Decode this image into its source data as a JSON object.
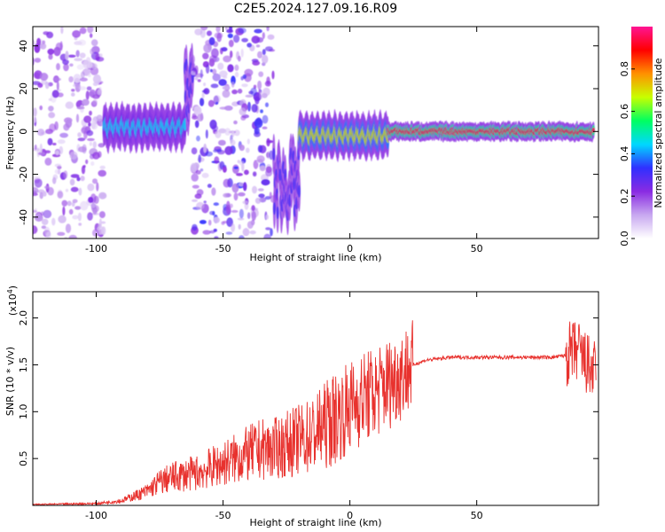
{
  "title": "C2E5.2024.127.09.16.R09",
  "colors": {
    "snr_line": "#e8322e",
    "colormap": [
      "#ffffff",
      "#c8a8f0",
      "#8a2be2",
      "#3030ff",
      "#00d8ff",
      "#00ff60",
      "#c8ff00",
      "#ff9000",
      "#ff0000",
      "#ff1493"
    ]
  },
  "chart_data": [
    {
      "type": "heatmap",
      "name": "spectrogram",
      "xlabel": "Height of straight line (km)",
      "ylabel": "Frequency (Hz)",
      "xlim": [
        -125,
        98
      ],
      "ylim": [
        -50,
        49
      ],
      "x_ticks": [
        -100,
        -50,
        0,
        50
      ],
      "y_ticks": [
        -40,
        -20,
        0,
        20,
        40
      ],
      "grid": false,
      "colorbar": {
        "label": "Normalized spectral amplitude",
        "range": [
          0,
          1
        ],
        "ticks": [
          "0.0",
          "0.2",
          "0.4",
          "0.6",
          "0.8"
        ]
      },
      "segments": [
        {
          "x_range": [
            -125,
            -97
          ],
          "kind": "noise",
          "amplitude": 0.15
        },
        {
          "x_range": [
            -97,
            -65
          ],
          "kind": "signal",
          "center_hz": 2,
          "amplitude": 0.45
        },
        {
          "x_range": [
            -65,
            -62
          ],
          "kind": "signal",
          "center_hz": 20,
          "amplitude": 0.3
        },
        {
          "x_range": [
            -62,
            -30
          ],
          "kind": "noise",
          "amplitude": 0.2
        },
        {
          "x_range": [
            -30,
            -20
          ],
          "kind": "signal",
          "center_hz": -25,
          "amplitude": 0.3
        },
        {
          "x_range": [
            -20,
            15
          ],
          "kind": "signal",
          "center_hz": -2,
          "amplitude": 0.7
        },
        {
          "x_range": [
            15,
            96
          ],
          "kind": "signal",
          "center_hz": 0,
          "amplitude": 0.95
        }
      ]
    },
    {
      "type": "line",
      "name": "snr",
      "xlabel": "Height of straight line (km)",
      "ylabel": "SNR (10 * v/v)",
      "y_multiplier": "(x10",
      "y_multiplier_exp": "4",
      "y_multiplier_close": ")",
      "xlim": [
        -125,
        98
      ],
      "ylim": [
        0,
        2.28
      ],
      "x_ticks": [
        -100,
        -50,
        0,
        50
      ],
      "y_ticks": [
        0.5,
        1.0,
        1.5,
        2.0
      ],
      "y_tick_labels": [
        "0.5",
        "1.0",
        "1.5",
        "2.0"
      ],
      "grid": false,
      "series": [
        {
          "x": [
            -125,
            -100,
            -90,
            -80,
            -75,
            -70,
            -60,
            -50,
            -40,
            -35,
            -30,
            -25,
            -20,
            -15,
            -10,
            -5,
            0,
            5,
            10,
            15,
            20,
            25,
            30,
            40,
            50,
            60,
            70,
            80,
            85,
            90,
            92,
            95,
            97
          ],
          "values": [
            0.01,
            0.02,
            0.05,
            0.15,
            0.25,
            0.3,
            0.35,
            0.45,
            0.55,
            0.6,
            0.6,
            0.65,
            0.7,
            0.75,
            0.85,
            0.95,
            1.05,
            1.15,
            1.2,
            1.3,
            1.4,
            1.5,
            1.55,
            1.58,
            1.58,
            1.58,
            1.58,
            1.58,
            1.6,
            1.65,
            1.55,
            1.45,
            1.4
          ]
        }
      ]
    }
  ]
}
